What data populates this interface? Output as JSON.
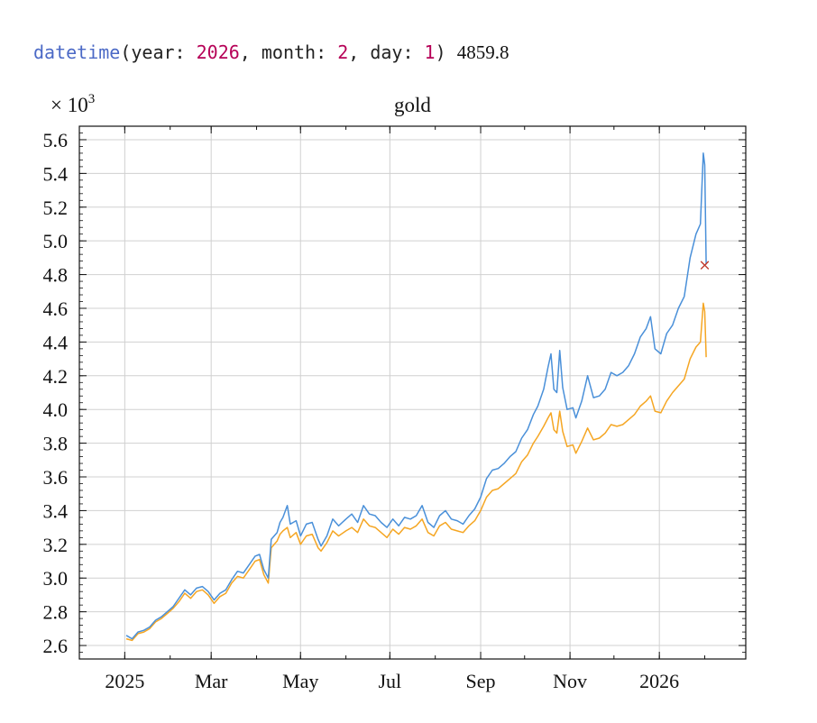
{
  "code": {
    "function": "datetime",
    "open": "(",
    "year_key": "year: ",
    "year_val": "2026",
    "sep1": ", ",
    "month_key": "month: ",
    "month_val": "2",
    "sep2": ", ",
    "day_key": "day: ",
    "day_val": "1",
    "close": ")",
    "result": "4859.8"
  },
  "chart_data": {
    "type": "line",
    "title": "gold",
    "y_multiplier": "× 10",
    "y_multiplier_exponent": "3",
    "xlim": [
      "2024-12-01",
      "2026-03-01"
    ],
    "ylim": [
      2.52,
      5.68
    ],
    "x_ticks": [
      {
        "date": "2025-01-01",
        "label": "2025"
      },
      {
        "date": "2025-03-01",
        "label": "Mar"
      },
      {
        "date": "2025-05-01",
        "label": "May"
      },
      {
        "date": "2025-07-01",
        "label": "Jul"
      },
      {
        "date": "2025-09-01",
        "label": "Sep"
      },
      {
        "date": "2025-11-01",
        "label": "Nov"
      },
      {
        "date": "2026-01-01",
        "label": "2026"
      }
    ],
    "y_ticks": [
      {
        "value": 2.6,
        "label": "2.6"
      },
      {
        "value": 2.8,
        "label": "2.8"
      },
      {
        "value": 3.0,
        "label": "3.0"
      },
      {
        "value": 3.2,
        "label": "3.2"
      },
      {
        "value": 3.4,
        "label": "3.4"
      },
      {
        "value": 3.6,
        "label": "3.6"
      },
      {
        "value": 3.8,
        "label": "3.8"
      },
      {
        "value": 4.0,
        "label": "4.0"
      },
      {
        "value": 4.2,
        "label": "4.2"
      },
      {
        "value": 4.4,
        "label": "4.4"
      },
      {
        "value": 4.6,
        "label": "4.6"
      },
      {
        "value": 4.8,
        "label": "4.8"
      },
      {
        "value": 5.0,
        "label": "5.0"
      },
      {
        "value": 5.2,
        "label": "5.2"
      },
      {
        "value": 5.4,
        "label": "5.4"
      },
      {
        "value": 5.6,
        "label": "5.6"
      }
    ],
    "grid": true,
    "series": [
      {
        "color": "#4a90d9",
        "points": [
          [
            "2025-01-02",
            2.66
          ],
          [
            "2025-01-06",
            2.64
          ],
          [
            "2025-01-10",
            2.68
          ],
          [
            "2025-01-14",
            2.69
          ],
          [
            "2025-01-18",
            2.71
          ],
          [
            "2025-01-22",
            2.75
          ],
          [
            "2025-01-26",
            2.77
          ],
          [
            "2025-01-30",
            2.8
          ],
          [
            "2025-02-03",
            2.83
          ],
          [
            "2025-02-07",
            2.88
          ],
          [
            "2025-02-11",
            2.93
          ],
          [
            "2025-02-15",
            2.9
          ],
          [
            "2025-02-19",
            2.94
          ],
          [
            "2025-02-23",
            2.95
          ],
          [
            "2025-02-27",
            2.92
          ],
          [
            "2025-03-03",
            2.87
          ],
          [
            "2025-03-07",
            2.91
          ],
          [
            "2025-03-11",
            2.93
          ],
          [
            "2025-03-15",
            2.99
          ],
          [
            "2025-03-19",
            3.04
          ],
          [
            "2025-03-23",
            3.03
          ],
          [
            "2025-03-27",
            3.08
          ],
          [
            "2025-03-31",
            3.13
          ],
          [
            "2025-04-03",
            3.14
          ],
          [
            "2025-04-06",
            3.05
          ],
          [
            "2025-04-09",
            3.0
          ],
          [
            "2025-04-11",
            3.23
          ],
          [
            "2025-04-15",
            3.27
          ],
          [
            "2025-04-17",
            3.33
          ],
          [
            "2025-04-19",
            3.36
          ],
          [
            "2025-04-22",
            3.43
          ],
          [
            "2025-04-24",
            3.32
          ],
          [
            "2025-04-28",
            3.34
          ],
          [
            "2025-05-01",
            3.25
          ],
          [
            "2025-05-05",
            3.32
          ],
          [
            "2025-05-09",
            3.33
          ],
          [
            "2025-05-13",
            3.23
          ],
          [
            "2025-05-15",
            3.19
          ],
          [
            "2025-05-19",
            3.25
          ],
          [
            "2025-05-23",
            3.35
          ],
          [
            "2025-05-27",
            3.31
          ],
          [
            "2025-06-01",
            3.35
          ],
          [
            "2025-06-05",
            3.38
          ],
          [
            "2025-06-09",
            3.33
          ],
          [
            "2025-06-13",
            3.43
          ],
          [
            "2025-06-17",
            3.38
          ],
          [
            "2025-06-21",
            3.37
          ],
          [
            "2025-06-25",
            3.33
          ],
          [
            "2025-06-29",
            3.3
          ],
          [
            "2025-07-03",
            3.35
          ],
          [
            "2025-07-07",
            3.31
          ],
          [
            "2025-07-11",
            3.36
          ],
          [
            "2025-07-15",
            3.35
          ],
          [
            "2025-07-19",
            3.37
          ],
          [
            "2025-07-23",
            3.43
          ],
          [
            "2025-07-27",
            3.33
          ],
          [
            "2025-07-31",
            3.3
          ],
          [
            "2025-08-04",
            3.37
          ],
          [
            "2025-08-08",
            3.4
          ],
          [
            "2025-08-12",
            3.35
          ],
          [
            "2025-08-16",
            3.34
          ],
          [
            "2025-08-20",
            3.32
          ],
          [
            "2025-08-24",
            3.37
          ],
          [
            "2025-08-28",
            3.41
          ],
          [
            "2025-09-01",
            3.48
          ],
          [
            "2025-09-05",
            3.59
          ],
          [
            "2025-09-09",
            3.64
          ],
          [
            "2025-09-13",
            3.65
          ],
          [
            "2025-09-17",
            3.68
          ],
          [
            "2025-09-21",
            3.72
          ],
          [
            "2025-09-25",
            3.75
          ],
          [
            "2025-09-29",
            3.83
          ],
          [
            "2025-10-03",
            3.88
          ],
          [
            "2025-10-07",
            3.97
          ],
          [
            "2025-10-10",
            4.02
          ],
          [
            "2025-10-14",
            4.12
          ],
          [
            "2025-10-17",
            4.25
          ],
          [
            "2025-10-19",
            4.33
          ],
          [
            "2025-10-21",
            4.12
          ],
          [
            "2025-10-23",
            4.1
          ],
          [
            "2025-10-25",
            4.35
          ],
          [
            "2025-10-27",
            4.13
          ],
          [
            "2025-10-30",
            4.0
          ],
          [
            "2025-11-03",
            4.01
          ],
          [
            "2025-11-05",
            3.95
          ],
          [
            "2025-11-09",
            4.05
          ],
          [
            "2025-11-13",
            4.2
          ],
          [
            "2025-11-17",
            4.07
          ],
          [
            "2025-11-21",
            4.08
          ],
          [
            "2025-11-25",
            4.12
          ],
          [
            "2025-11-29",
            4.22
          ],
          [
            "2025-12-03",
            4.2
          ],
          [
            "2025-12-07",
            4.22
          ],
          [
            "2025-12-11",
            4.26
          ],
          [
            "2025-12-15",
            4.33
          ],
          [
            "2025-12-19",
            4.43
          ],
          [
            "2025-12-23",
            4.48
          ],
          [
            "2025-12-26",
            4.55
          ],
          [
            "2025-12-29",
            4.36
          ],
          [
            "2026-01-02",
            4.33
          ],
          [
            "2026-01-06",
            4.45
          ],
          [
            "2026-01-10",
            4.5
          ],
          [
            "2026-01-14",
            4.6
          ],
          [
            "2026-01-18",
            4.67
          ],
          [
            "2026-01-22",
            4.9
          ],
          [
            "2026-01-26",
            5.04
          ],
          [
            "2026-01-29",
            5.1
          ],
          [
            "2026-01-31",
            5.52
          ],
          [
            "2026-02-01",
            5.45
          ],
          [
            "2026-02-02",
            4.86
          ]
        ]
      },
      {
        "color": "#f5a623",
        "points": [
          [
            "2025-01-02",
            2.64
          ],
          [
            "2025-01-06",
            2.63
          ],
          [
            "2025-01-10",
            2.67
          ],
          [
            "2025-01-14",
            2.68
          ],
          [
            "2025-01-18",
            2.7
          ],
          [
            "2025-01-22",
            2.74
          ],
          [
            "2025-01-26",
            2.76
          ],
          [
            "2025-01-30",
            2.79
          ],
          [
            "2025-02-03",
            2.82
          ],
          [
            "2025-02-07",
            2.86
          ],
          [
            "2025-02-11",
            2.91
          ],
          [
            "2025-02-15",
            2.88
          ],
          [
            "2025-02-19",
            2.92
          ],
          [
            "2025-02-23",
            2.93
          ],
          [
            "2025-02-27",
            2.9
          ],
          [
            "2025-03-03",
            2.85
          ],
          [
            "2025-03-07",
            2.89
          ],
          [
            "2025-03-11",
            2.91
          ],
          [
            "2025-03-15",
            2.97
          ],
          [
            "2025-03-19",
            3.01
          ],
          [
            "2025-03-23",
            3.0
          ],
          [
            "2025-03-27",
            3.05
          ],
          [
            "2025-03-31",
            3.1
          ],
          [
            "2025-04-03",
            3.11
          ],
          [
            "2025-04-06",
            3.02
          ],
          [
            "2025-04-09",
            2.97
          ],
          [
            "2025-04-11",
            3.18
          ],
          [
            "2025-04-15",
            3.22
          ],
          [
            "2025-04-17",
            3.26
          ],
          [
            "2025-04-19",
            3.28
          ],
          [
            "2025-04-22",
            3.3
          ],
          [
            "2025-04-24",
            3.24
          ],
          [
            "2025-04-28",
            3.27
          ],
          [
            "2025-05-01",
            3.2
          ],
          [
            "2025-05-05",
            3.25
          ],
          [
            "2025-05-09",
            3.26
          ],
          [
            "2025-05-13",
            3.18
          ],
          [
            "2025-05-15",
            3.16
          ],
          [
            "2025-05-19",
            3.21
          ],
          [
            "2025-05-23",
            3.28
          ],
          [
            "2025-05-27",
            3.25
          ],
          [
            "2025-06-01",
            3.28
          ],
          [
            "2025-06-05",
            3.3
          ],
          [
            "2025-06-09",
            3.27
          ],
          [
            "2025-06-13",
            3.35
          ],
          [
            "2025-06-17",
            3.31
          ],
          [
            "2025-06-21",
            3.3
          ],
          [
            "2025-06-25",
            3.27
          ],
          [
            "2025-06-29",
            3.24
          ],
          [
            "2025-07-03",
            3.29
          ],
          [
            "2025-07-07",
            3.26
          ],
          [
            "2025-07-11",
            3.3
          ],
          [
            "2025-07-15",
            3.29
          ],
          [
            "2025-07-19",
            3.31
          ],
          [
            "2025-07-23",
            3.35
          ],
          [
            "2025-07-27",
            3.27
          ],
          [
            "2025-07-31",
            3.25
          ],
          [
            "2025-08-04",
            3.31
          ],
          [
            "2025-08-08",
            3.33
          ],
          [
            "2025-08-12",
            3.29
          ],
          [
            "2025-08-16",
            3.28
          ],
          [
            "2025-08-20",
            3.27
          ],
          [
            "2025-08-24",
            3.31
          ],
          [
            "2025-08-28",
            3.34
          ],
          [
            "2025-09-01",
            3.4
          ],
          [
            "2025-09-05",
            3.48
          ],
          [
            "2025-09-09",
            3.52
          ],
          [
            "2025-09-13",
            3.53
          ],
          [
            "2025-09-17",
            3.56
          ],
          [
            "2025-09-21",
            3.59
          ],
          [
            "2025-09-25",
            3.62
          ],
          [
            "2025-09-29",
            3.69
          ],
          [
            "2025-10-03",
            3.73
          ],
          [
            "2025-10-07",
            3.8
          ],
          [
            "2025-10-10",
            3.84
          ],
          [
            "2025-10-14",
            3.9
          ],
          [
            "2025-10-17",
            3.95
          ],
          [
            "2025-10-19",
            3.98
          ],
          [
            "2025-10-21",
            3.88
          ],
          [
            "2025-10-23",
            3.86
          ],
          [
            "2025-10-25",
            3.99
          ],
          [
            "2025-10-27",
            3.87
          ],
          [
            "2025-10-30",
            3.78
          ],
          [
            "2025-11-03",
            3.79
          ],
          [
            "2025-11-05",
            3.74
          ],
          [
            "2025-11-09",
            3.81
          ],
          [
            "2025-11-13",
            3.89
          ],
          [
            "2025-11-17",
            3.82
          ],
          [
            "2025-11-21",
            3.83
          ],
          [
            "2025-11-25",
            3.86
          ],
          [
            "2025-11-29",
            3.91
          ],
          [
            "2025-12-03",
            3.9
          ],
          [
            "2025-12-07",
            3.91
          ],
          [
            "2025-12-11",
            3.94
          ],
          [
            "2025-12-15",
            3.97
          ],
          [
            "2025-12-19",
            4.02
          ],
          [
            "2025-12-23",
            4.05
          ],
          [
            "2025-12-26",
            4.08
          ],
          [
            "2025-12-29",
            3.99
          ],
          [
            "2026-01-02",
            3.98
          ],
          [
            "2026-01-06",
            4.05
          ],
          [
            "2026-01-10",
            4.1
          ],
          [
            "2026-01-14",
            4.14
          ],
          [
            "2026-01-18",
            4.18
          ],
          [
            "2026-01-22",
            4.3
          ],
          [
            "2026-01-26",
            4.37
          ],
          [
            "2026-01-29",
            4.4
          ],
          [
            "2026-01-31",
            4.63
          ],
          [
            "2026-02-01",
            4.58
          ],
          [
            "2026-02-02",
            4.31
          ]
        ]
      }
    ],
    "marker": {
      "date": "2026-02-01",
      "value": 4.8598,
      "symbol": "×",
      "color": "#c0392b"
    }
  }
}
